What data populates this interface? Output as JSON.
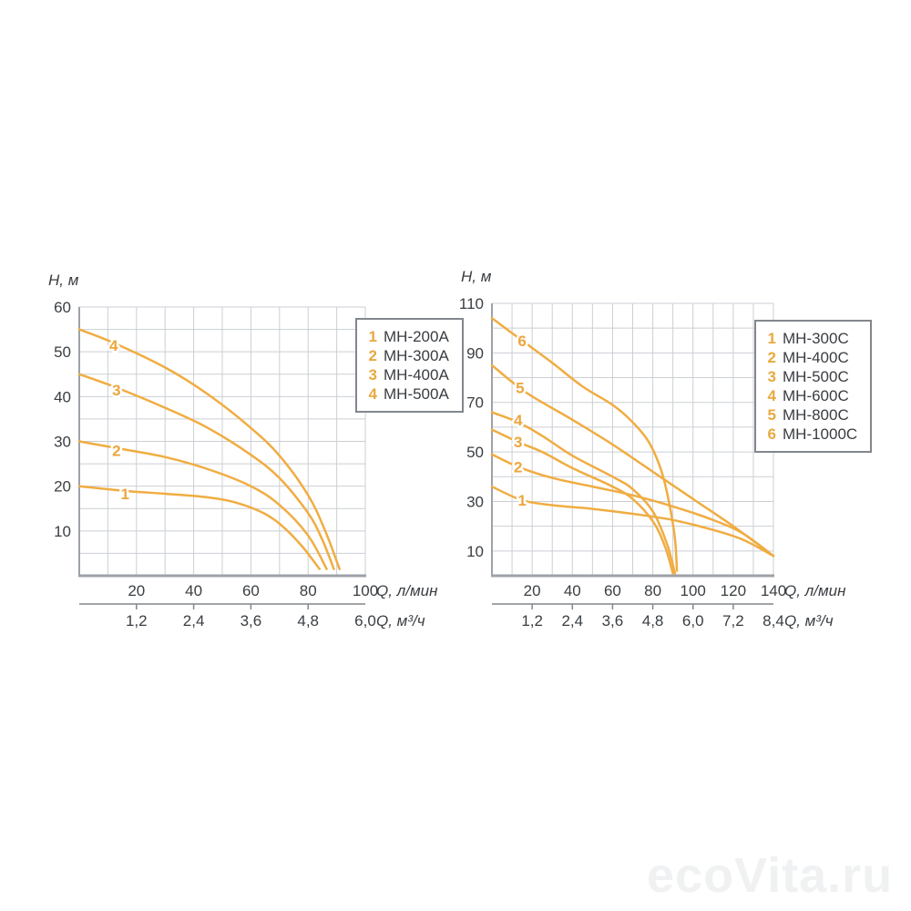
{
  "page": {
    "watermark": "ecoVita.ru"
  },
  "colors": {
    "curve": "#f0ad42",
    "curve_label": "#eca63c",
    "legend_number": "#e8a93f",
    "text": "#3a3e42",
    "grid": "#cbcfd4",
    "axis": "#9ca2a8",
    "secondary_axis": "#82878c",
    "watermark": "#eff1f2"
  },
  "chart_data": [
    {
      "type": "line",
      "title_y": "Н, м",
      "xlabel_primary": "Q, л/мин",
      "xlabel_secondary": "Q, м³/ч",
      "xlim": [
        0,
        100
      ],
      "ylim": [
        0,
        60
      ],
      "x_grid_step": 10,
      "y_grid_step": 5,
      "x_ticks": [
        20,
        40,
        60,
        80,
        100
      ],
      "y_ticks": [
        10,
        20,
        30,
        40,
        50,
        60
      ],
      "x_secondary_labels": [
        "1,2",
        "2,4",
        "3,6",
        "4,8",
        "6,0"
      ],
      "grid": true,
      "legend_position": "top-right",
      "series": [
        {
          "id": "1",
          "name": "МН-200А",
          "label_pos": [
            16,
            18.3
          ],
          "points": [
            [
              0,
              20
            ],
            [
              15,
              19
            ],
            [
              30,
              18.3
            ],
            [
              45,
              17.5
            ],
            [
              55,
              16.3
            ],
            [
              65,
              13.8
            ],
            [
              72,
              10.5
            ],
            [
              78,
              6.5
            ],
            [
              84,
              1.5
            ]
          ]
        },
        {
          "id": "2",
          "name": "МН-300А",
          "label_pos": [
            13,
            28
          ],
          "points": [
            [
              0,
              30
            ],
            [
              13,
              28.5
            ],
            [
              30,
              26.5
            ],
            [
              45,
              23.8
            ],
            [
              60,
              20
            ],
            [
              70,
              15.8
            ],
            [
              80,
              9
            ],
            [
              86.5,
              1.5
            ]
          ]
        },
        {
          "id": "3",
          "name": "МН-400А",
          "label_pos": [
            13,
            41.5
          ],
          "points": [
            [
              0,
              45
            ],
            [
              13,
              42
            ],
            [
              30,
              37.5
            ],
            [
              45,
              33
            ],
            [
              60,
              27
            ],
            [
              70,
              21.8
            ],
            [
              80,
              14
            ],
            [
              85,
              8
            ],
            [
              89,
              1.5
            ]
          ]
        },
        {
          "id": "4",
          "name": "МН-500А",
          "label_pos": [
            12,
            51.5
          ],
          "points": [
            [
              0,
              55
            ],
            [
              12,
              52
            ],
            [
              30,
              46.5
            ],
            [
              45,
              40.5
            ],
            [
              60,
              33
            ],
            [
              70,
              26.8
            ],
            [
              80,
              18
            ],
            [
              86,
              10
            ],
            [
              91,
              1.5
            ]
          ]
        }
      ]
    },
    {
      "type": "line",
      "title_y": "Н, м",
      "xlabel_primary": "Q, л/мин",
      "xlabel_secondary": "Q, м³/ч",
      "xlim": [
        0,
        140
      ],
      "ylim": [
        0,
        110
      ],
      "x_grid_step": 10,
      "y_grid_step": 10,
      "x_ticks": [
        20,
        40,
        60,
        80,
        100,
        120,
        140
      ],
      "y_ticks": [
        10,
        30,
        50,
        70,
        90,
        110
      ],
      "x_secondary_labels": [
        "1,2",
        "2,4",
        "3,6",
        "4,8",
        "6,0",
        "7,2",
        "8,4"
      ],
      "grid": true,
      "legend_position": "top-right",
      "series": [
        {
          "id": "1",
          "name": "МН-300С",
          "label_pos": [
            15,
            30.5
          ],
          "points": [
            [
              0,
              36
            ],
            [
              15,
              30.5
            ],
            [
              30,
              28.5
            ],
            [
              50,
              27
            ],
            [
              70,
              25
            ],
            [
              90,
              22.5
            ],
            [
              110,
              18.5
            ],
            [
              125,
              14.5
            ],
            [
              140,
              8
            ]
          ]
        },
        {
          "id": "2",
          "name": "МН-400С",
          "label_pos": [
            13,
            44
          ],
          "points": [
            [
              0,
              49
            ],
            [
              13,
              44
            ],
            [
              30,
              39.5
            ],
            [
              50,
              36
            ],
            [
              70,
              32.5
            ],
            [
              90,
              28
            ],
            [
              110,
              22.5
            ],
            [
              125,
              17
            ],
            [
              140,
              8
            ]
          ]
        },
        {
          "id": "3",
          "name": "МН-500С",
          "label_pos": [
            13,
            54
          ],
          "points": [
            [
              0,
              59
            ],
            [
              13,
              54
            ],
            [
              25,
              50
            ],
            [
              40,
              43.5
            ],
            [
              60,
              36
            ],
            [
              70,
              31
            ],
            [
              80,
              22
            ],
            [
              86,
              12
            ],
            [
              90,
              1
            ]
          ]
        },
        {
          "id": "4",
          "name": "МН-600С",
          "label_pos": [
            13,
            63
          ],
          "points": [
            [
              0,
              66
            ],
            [
              13,
              62
            ],
            [
              25,
              56.5
            ],
            [
              40,
              48.5
            ],
            [
              60,
              40
            ],
            [
              70,
              35
            ],
            [
              80,
              26
            ],
            [
              87,
              13
            ],
            [
              91,
              1
            ]
          ]
        },
        {
          "id": "5",
          "name": "МН-800С",
          "label_pos": [
            14,
            76
          ],
          "points": [
            [
              0,
              85
            ],
            [
              17,
              74
            ],
            [
              40,
              63
            ],
            [
              60,
              53
            ],
            [
              80,
              42
            ],
            [
              100,
              31
            ],
            [
              120,
              20
            ],
            [
              140,
              8
            ]
          ]
        },
        {
          "id": "6",
          "name": "МН-1000С",
          "label_pos": [
            15,
            95
          ],
          "points": [
            [
              0,
              104
            ],
            [
              15,
              95
            ],
            [
              30,
              86
            ],
            [
              45,
              76.5
            ],
            [
              60,
              69
            ],
            [
              70,
              62
            ],
            [
              78,
              54
            ],
            [
              84,
              43
            ],
            [
              88,
              30
            ],
            [
              91,
              15
            ],
            [
              92,
              2
            ]
          ]
        }
      ]
    }
  ]
}
